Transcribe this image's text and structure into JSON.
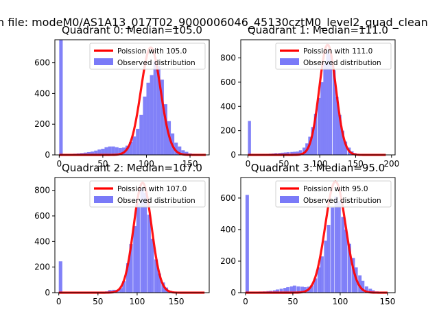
{
  "figure": {
    "suptitle": "n file: modeM0/AS1A13_017T02_9000006046_45130cztM0_level2_quad_clean"
  },
  "colors": {
    "hist": "#7a7af8",
    "curve": "#ff0000",
    "spine": "#000000"
  },
  "chart_data": [
    {
      "type": "bar",
      "title": "Quadrant 0: Median=105.0",
      "legend": {
        "placement": "upper right",
        "entries": [
          "Poission with 105.0",
          "Observed distribution"
        ]
      },
      "xlim": [
        -5,
        172
      ],
      "ylim": [
        0,
        750
      ],
      "xticks": [
        0,
        50,
        100,
        150
      ],
      "yticks": [
        0,
        200,
        400,
        600
      ],
      "bin_width": 4,
      "bins": [
        [
          0,
          750
        ],
        [
          4,
          4
        ],
        [
          8,
          4
        ],
        [
          12,
          6
        ],
        [
          16,
          8
        ],
        [
          20,
          10
        ],
        [
          24,
          12
        ],
        [
          28,
          15
        ],
        [
          32,
          18
        ],
        [
          36,
          22
        ],
        [
          40,
          28
        ],
        [
          44,
          35
        ],
        [
          48,
          40
        ],
        [
          52,
          50
        ],
        [
          56,
          55
        ],
        [
          60,
          55
        ],
        [
          64,
          50
        ],
        [
          68,
          45
        ],
        [
          72,
          48
        ],
        [
          76,
          60
        ],
        [
          80,
          85
        ],
        [
          84,
          120
        ],
        [
          88,
          170
        ],
        [
          92,
          260
        ],
        [
          96,
          380
        ],
        [
          100,
          470
        ],
        [
          104,
          520
        ],
        [
          108,
          610
        ],
        [
          112,
          580
        ],
        [
          116,
          490
        ],
        [
          120,
          330
        ],
        [
          124,
          220
        ],
        [
          128,
          140
        ],
        [
          132,
          80
        ],
        [
          136,
          55
        ],
        [
          140,
          30
        ],
        [
          144,
          20
        ],
        [
          148,
          10
        ],
        [
          152,
          6
        ],
        [
          156,
          3
        ],
        [
          160,
          2
        ],
        [
          164,
          1
        ]
      ],
      "curve": {
        "label": "Poission with 105.0",
        "mean": 105.0,
        "peak": 700,
        "x_range": [
          0,
          168
        ]
      }
    },
    {
      "type": "bar",
      "title": "Quadrant 1: Median=111.0",
      "legend": {
        "placement": "upper right",
        "entries": [
          "Poission with 111.0",
          "Observed distribution"
        ]
      },
      "xlim": [
        -10,
        205
      ],
      "ylim": [
        0,
        950
      ],
      "xticks": [
        0,
        50,
        100,
        150,
        200
      ],
      "yticks": [
        0,
        200,
        400,
        600,
        800
      ],
      "bin_width": 4.2,
      "bins": [
        [
          0,
          280
        ],
        [
          4,
          2
        ],
        [
          8,
          3
        ],
        [
          12,
          4
        ],
        [
          16,
          5
        ],
        [
          20,
          6
        ],
        [
          25,
          8
        ],
        [
          29,
          10
        ],
        [
          33,
          12
        ],
        [
          37,
          15
        ],
        [
          42,
          16
        ],
        [
          46,
          18
        ],
        [
          50,
          20
        ],
        [
          54,
          22
        ],
        [
          59,
          24
        ],
        [
          63,
          26
        ],
        [
          67,
          28
        ],
        [
          71,
          38
        ],
        [
          76,
          60
        ],
        [
          80,
          95
        ],
        [
          84,
          150
        ],
        [
          88,
          230
        ],
        [
          92,
          340
        ],
        [
          97,
          470
        ],
        [
          101,
          600
        ],
        [
          105,
          760
        ],
        [
          109,
          860
        ],
        [
          113,
          830
        ],
        [
          118,
          700
        ],
        [
          122,
          480
        ],
        [
          126,
          330
        ],
        [
          130,
          200
        ],
        [
          134,
          110
        ],
        [
          139,
          60
        ],
        [
          143,
          30
        ],
        [
          147,
          15
        ],
        [
          151,
          8
        ],
        [
          156,
          4
        ],
        [
          160,
          2
        ],
        [
          164,
          1
        ]
      ],
      "curve": {
        "label": "Poission with 111.0",
        "mean": 111.0,
        "peak": 910,
        "x_range": [
          0,
          192
        ]
      }
    },
    {
      "type": "bar",
      "title": "Quadrant 2: Median=107.0",
      "legend": {
        "placement": "upper right",
        "entries": [
          "Poission with 107.0",
          "Observed distribution"
        ]
      },
      "xlim": [
        -5,
        192
      ],
      "ylim": [
        0,
        900
      ],
      "xticks": [
        0,
        50,
        100,
        150
      ],
      "yticks": [
        0,
        200,
        400,
        600,
        800
      ],
      "bin_width": 4.5,
      "bins": [
        [
          0,
          245
        ],
        [
          5,
          3
        ],
        [
          9,
          3
        ],
        [
          14,
          4
        ],
        [
          18,
          4
        ],
        [
          23,
          5
        ],
        [
          27,
          5
        ],
        [
          32,
          5
        ],
        [
          36,
          6
        ],
        [
          41,
          6
        ],
        [
          45,
          6
        ],
        [
          50,
          7
        ],
        [
          54,
          7
        ],
        [
          59,
          10
        ],
        [
          63,
          20
        ],
        [
          68,
          22
        ],
        [
          72,
          20
        ],
        [
          77,
          35
        ],
        [
          81,
          90
        ],
        [
          86,
          230
        ],
        [
          90,
          380
        ],
        [
          95,
          520
        ],
        [
          99,
          700
        ],
        [
          104,
          820
        ],
        [
          108,
          780
        ],
        [
          113,
          610
        ],
        [
          117,
          420
        ],
        [
          122,
          260
        ],
        [
          126,
          150
        ],
        [
          131,
          80
        ],
        [
          135,
          40
        ],
        [
          140,
          15
        ],
        [
          144,
          7
        ],
        [
          149,
          3
        ],
        [
          153,
          2
        ]
      ],
      "curve": {
        "label": "Poission with 107.0",
        "mean": 107.0,
        "peak": 860,
        "x_range": [
          0,
          186
        ]
      }
    },
    {
      "type": "bar",
      "title": "Quadrant 3: Median=95.0",
      "legend": {
        "placement": "upper right",
        "entries": [
          "Poission with 95.0",
          "Observed distribution"
        ]
      },
      "xlim": [
        -5,
        158
      ],
      "ylim": [
        0,
        730
      ],
      "xticks": [
        0,
        50,
        100,
        150
      ],
      "yticks": [
        0,
        200,
        400,
        600
      ],
      "bin_width": 3.6,
      "bins": [
        [
          0,
          620
        ],
        [
          4,
          5
        ],
        [
          7,
          5
        ],
        [
          11,
          6
        ],
        [
          14,
          7
        ],
        [
          18,
          8
        ],
        [
          22,
          10
        ],
        [
          25,
          12
        ],
        [
          29,
          15
        ],
        [
          32,
          20
        ],
        [
          36,
          25
        ],
        [
          40,
          30
        ],
        [
          43,
          35
        ],
        [
          47,
          40
        ],
        [
          50,
          45
        ],
        [
          54,
          40
        ],
        [
          58,
          38
        ],
        [
          61,
          35
        ],
        [
          65,
          38
        ],
        [
          68,
          45
        ],
        [
          72,
          90
        ],
        [
          76,
          160
        ],
        [
          79,
          230
        ],
        [
          83,
          330
        ],
        [
          86,
          430
        ],
        [
          90,
          540
        ],
        [
          94,
          610
        ],
        [
          97,
          580
        ],
        [
          101,
          480
        ],
        [
          104,
          400
        ],
        [
          108,
          310
        ],
        [
          112,
          220
        ],
        [
          115,
          160
        ],
        [
          119,
          110
        ],
        [
          122,
          75
        ],
        [
          126,
          40
        ],
        [
          130,
          25
        ],
        [
          133,
          15
        ],
        [
          137,
          8
        ],
        [
          140,
          4
        ],
        [
          144,
          2
        ]
      ],
      "curve": {
        "label": "Poission with 95.0",
        "mean": 95.0,
        "peak": 705,
        "x_range": [
          0,
          150
        ]
      }
    }
  ]
}
